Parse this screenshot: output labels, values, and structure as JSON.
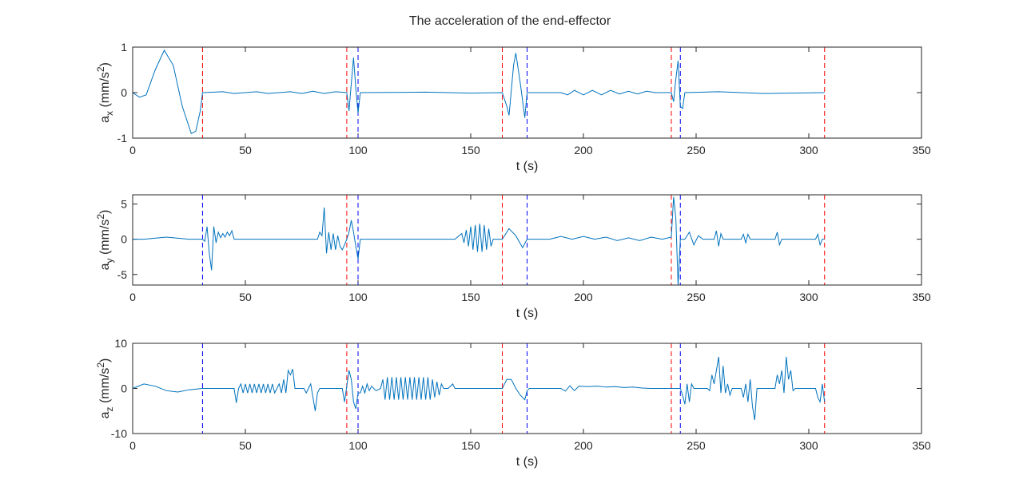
{
  "title": "The acceleration of the end-effector",
  "chart_data": [
    {
      "type": "line",
      "xlabel": "t (s)",
      "ylabel": [
        "a",
        "x",
        " (mm/s",
        "2",
        ")"
      ],
      "xlim": [
        0,
        350
      ],
      "xticks": [
        0,
        50,
        100,
        150,
        200,
        250,
        300,
        350
      ],
      "ylim": [
        -1,
        1
      ],
      "yticks": [
        -1,
        0,
        1
      ],
      "vlines": [
        {
          "x": 31,
          "color": "#ff0000"
        },
        {
          "x": 95,
          "color": "#ff0000"
        },
        {
          "x": 100,
          "color": "#0000ff"
        },
        {
          "x": 164,
          "color": "#ff0000"
        },
        {
          "x": 175,
          "color": "#0000ff"
        },
        {
          "x": 239,
          "color": "#ff0000"
        },
        {
          "x": 243,
          "color": "#0000ff"
        },
        {
          "x": 307,
          "color": "#ff0000"
        }
      ],
      "series": [
        {
          "color": "#0072bd",
          "x": [
            0,
            3,
            6,
            10,
            14,
            18,
            22,
            26,
            28,
            30,
            31,
            40,
            45,
            55,
            60,
            70,
            75,
            80,
            85,
            90,
            95,
            96,
            97,
            98,
            99,
            100,
            101,
            130,
            150,
            164,
            166,
            167,
            169,
            170,
            172,
            174,
            175,
            190,
            193,
            196,
            200,
            204,
            208,
            212,
            216,
            220,
            224,
            228,
            232,
            239,
            240,
            241,
            242,
            243,
            244,
            245,
            260,
            280,
            307
          ],
          "values": [
            0,
            -0.1,
            -0.05,
            0.5,
            0.93,
            0.6,
            -0.3,
            -0.9,
            -0.85,
            -0.4,
            0,
            0.02,
            -0.02,
            0.02,
            -0.02,
            0.02,
            -0.02,
            0.03,
            -0.02,
            0.02,
            0,
            -0.4,
            0.2,
            0.77,
            0.1,
            -0.45,
            0,
            0.01,
            -0.01,
            0,
            -0.3,
            -0.5,
            0.6,
            0.87,
            0.2,
            -0.55,
            0,
            0,
            -0.05,
            0.05,
            -0.05,
            0.05,
            -0.05,
            0.05,
            -0.03,
            0.03,
            -0.03,
            0.03,
            0,
            0,
            -0.2,
            0.3,
            0.7,
            -0.3,
            -0.35,
            0,
            0.02,
            -0.02,
            0
          ]
        }
      ]
    },
    {
      "type": "line",
      "xlabel": "t (s)",
      "ylabel": [
        "a",
        "y",
        " (mm/s",
        "2",
        ")"
      ],
      "xlim": [
        0,
        350
      ],
      "xticks": [
        0,
        50,
        100,
        150,
        200,
        250,
        300,
        350
      ],
      "ylim": [
        -6.5,
        6.3
      ],
      "yticks": [
        -5,
        0,
        5
      ],
      "vlines": [
        {
          "x": 31,
          "color": "#0000ff"
        },
        {
          "x": 95,
          "color": "#ff0000"
        },
        {
          "x": 100,
          "color": "#0000ff"
        },
        {
          "x": 164,
          "color": "#ff0000"
        },
        {
          "x": 175,
          "color": "#0000ff"
        },
        {
          "x": 239,
          "color": "#ff0000"
        },
        {
          "x": 243,
          "color": "#0000ff"
        },
        {
          "x": 307,
          "color": "#ff0000"
        }
      ],
      "series": [
        {
          "color": "#0072bd",
          "x": [
            0,
            5,
            15,
            25,
            31,
            32,
            33,
            34,
            35,
            36,
            37,
            38,
            39,
            40,
            41,
            42,
            43,
            44,
            45,
            82,
            83,
            84,
            85,
            86,
            87,
            88,
            89,
            90,
            91,
            92,
            93,
            94,
            95,
            96,
            97,
            98,
            99,
            100,
            101,
            143,
            146,
            147,
            148,
            149,
            150,
            151,
            152,
            153,
            154,
            155,
            156,
            157,
            158,
            159,
            160,
            164,
            167,
            170,
            173,
            175,
            185,
            190,
            195,
            200,
            205,
            210,
            215,
            220,
            225,
            230,
            235,
            239,
            240,
            241,
            242,
            243,
            245,
            247,
            249,
            251,
            253,
            258,
            259,
            260,
            261,
            262,
            270,
            271,
            272,
            273,
            274,
            285,
            286,
            287,
            288,
            303,
            304,
            305,
            306,
            307
          ],
          "values": [
            0,
            0,
            0.3,
            0,
            0,
            -0.3,
            1.8,
            -2,
            -4.4,
            1.8,
            -0.5,
            1,
            0.2,
            0.8,
            0.3,
            1,
            0.5,
            1.2,
            0,
            0,
            1,
            0.5,
            4.5,
            -2,
            1,
            -1.5,
            0.8,
            -1.5,
            0.5,
            -1,
            -1.5,
            -0.8,
            0,
            1,
            2.7,
            1,
            -1,
            -2.8,
            0,
            0,
            0.8,
            -0.5,
            1.3,
            -1,
            1.8,
            -1.5,
            2,
            -1.8,
            2.2,
            -1.8,
            2,
            -1.5,
            1.5,
            -1,
            0,
            0,
            1.5,
            0.5,
            -1.2,
            0,
            0,
            0.4,
            0,
            0.4,
            0,
            0.3,
            -0.2,
            0.2,
            -0.2,
            0.3,
            0,
            0.3,
            6,
            3,
            -6.5,
            0,
            0,
            1,
            -0.8,
            0.5,
            0,
            0,
            1.2,
            -1,
            0.8,
            0,
            0,
            0.7,
            -0.5,
            0.7,
            0,
            0,
            1,
            -0.8,
            0,
            0,
            0.7,
            -0.8,
            0,
            0
          ]
        }
      ]
    },
    {
      "type": "line",
      "xlabel": "t (s)",
      "ylabel": [
        "a",
        "z",
        " (mm/s",
        "2",
        ")"
      ],
      "xlim": [
        0,
        350
      ],
      "xticks": [
        0,
        50,
        100,
        150,
        200,
        250,
        300,
        350
      ],
      "ylim": [
        -10,
        10
      ],
      "yticks": [
        -10,
        0,
        10
      ],
      "vlines": [
        {
          "x": 31,
          "color": "#0000ff"
        },
        {
          "x": 95,
          "color": "#ff0000"
        },
        {
          "x": 100,
          "color": "#0000ff"
        },
        {
          "x": 164,
          "color": "#ff0000"
        },
        {
          "x": 175,
          "color": "#0000ff"
        },
        {
          "x": 239,
          "color": "#ff0000"
        },
        {
          "x": 243,
          "color": "#0000ff"
        },
        {
          "x": 307,
          "color": "#ff0000"
        }
      ],
      "series": [
        {
          "color": "#0072bd",
          "x": [
            0,
            5,
            10,
            15,
            20,
            25,
            31,
            45,
            46,
            47,
            48,
            49,
            50,
            51,
            52,
            53,
            54,
            55,
            56,
            57,
            58,
            59,
            60,
            61,
            62,
            63,
            64,
            65,
            66,
            67,
            68,
            69,
            70,
            71,
            72,
            76,
            77,
            79,
            80,
            81,
            82,
            83,
            93,
            94,
            96,
            97,
            98,
            99,
            100,
            101,
            102,
            103,
            104,
            105,
            106,
            108,
            110,
            111,
            112,
            113,
            114,
            115,
            116,
            117,
            118,
            119,
            120,
            121,
            122,
            123,
            124,
            125,
            126,
            127,
            128,
            129,
            130,
            131,
            132,
            133,
            134,
            135,
            136,
            137,
            138,
            140,
            142,
            143,
            164,
            166,
            168,
            170,
            172,
            174,
            175,
            176,
            190,
            192,
            194,
            196,
            198,
            202,
            206,
            210,
            214,
            218,
            222,
            226,
            230,
            239,
            243,
            244,
            245,
            246,
            247,
            248,
            249,
            255,
            256,
            257,
            258,
            259,
            260,
            261,
            262,
            263,
            264,
            265,
            266,
            270,
            271,
            272,
            273,
            274,
            275,
            276,
            277,
            279,
            285,
            286,
            287,
            288,
            289,
            290,
            291,
            292,
            293,
            294,
            303,
            304,
            305,
            306,
            307
          ],
          "values": [
            0,
            1,
            0.5,
            -0.5,
            -0.8,
            -0.3,
            0,
            0,
            -3.2,
            0,
            1,
            -1,
            1,
            -1,
            1,
            -1,
            1,
            -1,
            1,
            -1,
            1,
            -1,
            1,
            -1,
            1,
            -1,
            0,
            1,
            -1,
            2,
            -1,
            4,
            3,
            4.3,
            0,
            0,
            -1,
            1,
            -2,
            -5,
            -1,
            0,
            0,
            -3,
            4,
            2,
            -3,
            -4.5,
            -1,
            -1,
            0.5,
            -1,
            1,
            -0.5,
            0.5,
            -0.5,
            0,
            2,
            -2.5,
            2.5,
            -2.5,
            2.5,
            -2.5,
            2.5,
            -2.5,
            2.5,
            -2.5,
            2.5,
            -2.5,
            2.5,
            -2.5,
            2.5,
            -2.5,
            2.5,
            -2.5,
            2.5,
            -2.5,
            2.5,
            -2.5,
            2,
            -2,
            1.5,
            -1.5,
            1,
            0,
            0,
            1,
            0,
            0,
            2,
            2,
            0,
            -1.5,
            -2.5,
            -0.5,
            0,
            0,
            -0.6,
            0.6,
            -0.5,
            0.5,
            0.4,
            0.5,
            0.3,
            0.4,
            0.2,
            0.3,
            0.1,
            0,
            0,
            0,
            -1.5,
            -3.5,
            1,
            -3,
            1,
            0,
            0,
            -0.5,
            3,
            1,
            4,
            7,
            -1,
            5,
            -1,
            1,
            -1.5,
            0,
            0,
            -2,
            1,
            -3,
            2,
            -4,
            -7,
            0,
            0,
            0,
            3,
            1,
            4,
            -1,
            7,
            2,
            4,
            -0.5,
            0,
            0,
            -2,
            -3,
            1,
            -3
          ]
        }
      ]
    }
  ]
}
